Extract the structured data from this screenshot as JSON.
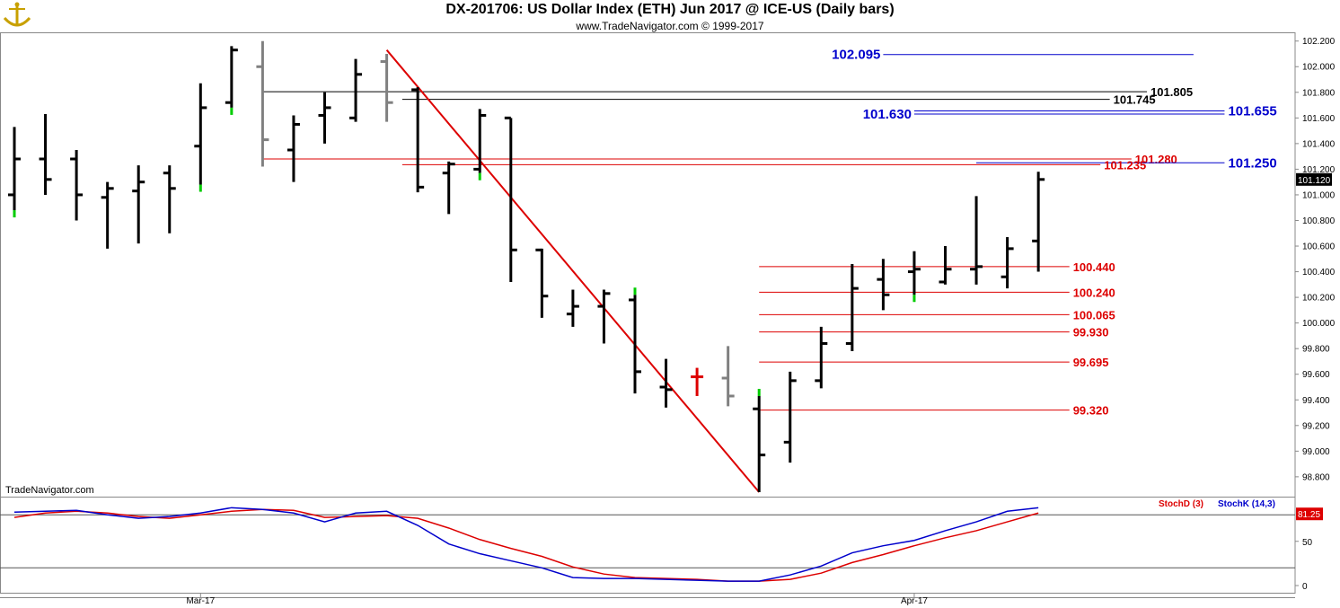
{
  "header": {
    "title": "DX-201706:  US Dollar Index (ETH) Jun 2017 @ ICE-US  (Daily bars)",
    "subtitle": "www.TradeNavigator.com © 1999-2017",
    "watermark": "TradeNavigator.com"
  },
  "colors": {
    "up_first_bar": "#00cc00",
    "bar": "#000000",
    "gray_bar": "#808080",
    "trendline": "#dd0000",
    "level_red": "#dd0000",
    "level_black": "#000000",
    "level_blue": "#0000cc",
    "price_label_bg": "#000000",
    "stoch_label_bg": "#dd0000"
  },
  "chart_data": {
    "type": "ohlc",
    "price_axis": {
      "range": [
        98.68,
        102.24
      ],
      "ticks": [
        "102.200",
        "102.000",
        "101.800",
        "101.600",
        "101.400",
        "101.200",
        "101.000",
        "100.800",
        "100.600",
        "100.400",
        "100.200",
        "100.000",
        "99.800",
        "99.600",
        "99.400",
        "99.200",
        "99.000",
        "98.800"
      ]
    },
    "x_labels": [
      {
        "bar": 6,
        "text": "Mar-17"
      },
      {
        "bar": 29,
        "text": "Apr-17"
      }
    ],
    "last_price_label": "101.120",
    "bars": [
      {
        "o": 101.0,
        "h": 101.53,
        "l": 100.88,
        "c": 101.28,
        "color": "black",
        "tick": "green"
      },
      {
        "o": 101.28,
        "h": 101.63,
        "l": 101.0,
        "c": 101.12,
        "color": "black"
      },
      {
        "o": 101.28,
        "h": 101.35,
        "l": 100.8,
        "c": 101.0,
        "color": "black"
      },
      {
        "o": 100.98,
        "h": 101.1,
        "l": 100.58,
        "c": 101.05,
        "color": "black"
      },
      {
        "o": 101.03,
        "h": 101.23,
        "l": 100.62,
        "c": 101.1,
        "color": "black"
      },
      {
        "o": 101.17,
        "h": 101.23,
        "l": 100.7,
        "c": 101.05,
        "color": "black"
      },
      {
        "o": 101.38,
        "h": 101.87,
        "l": 101.08,
        "c": 101.68,
        "color": "black",
        "tick": "green"
      },
      {
        "o": 101.72,
        "h": 102.16,
        "l": 101.68,
        "c": 102.13,
        "color": "black",
        "tick": "green"
      },
      {
        "o": 102.0,
        "h": 102.2,
        "l": 101.22,
        "c": 101.43,
        "color": "gray"
      },
      {
        "o": 101.35,
        "h": 101.62,
        "l": 101.1,
        "c": 101.55,
        "color": "black"
      },
      {
        "o": 101.62,
        "h": 101.8,
        "l": 101.4,
        "c": 101.68,
        "color": "black"
      },
      {
        "o": 101.6,
        "h": 102.06,
        "l": 101.57,
        "c": 101.94,
        "color": "black"
      },
      {
        "o": 102.04,
        "h": 102.1,
        "l": 101.57,
        "c": 101.72,
        "color": "gray"
      },
      {
        "o": 101.82,
        "h": 101.84,
        "l": 101.02,
        "c": 101.06,
        "color": "black"
      },
      {
        "o": 101.17,
        "h": 101.26,
        "l": 100.85,
        "c": 101.24,
        "color": "black"
      },
      {
        "o": 101.2,
        "h": 101.67,
        "l": 101.17,
        "c": 101.62,
        "color": "black",
        "tick": "green"
      },
      {
        "o": 101.6,
        "h": 101.6,
        "l": 100.32,
        "c": 100.57,
        "color": "black"
      },
      {
        "o": 100.57,
        "h": 100.58,
        "l": 100.04,
        "c": 100.21,
        "color": "black"
      },
      {
        "o": 100.07,
        "h": 100.26,
        "l": 99.97,
        "c": 100.13,
        "color": "black"
      },
      {
        "o": 100.13,
        "h": 100.26,
        "l": 99.84,
        "c": 100.23,
        "color": "black"
      },
      {
        "o": 100.18,
        "h": 100.22,
        "l": 99.45,
        "c": 99.62,
        "color": "black",
        "tick": "green"
      },
      {
        "o": 99.5,
        "h": 99.72,
        "l": 99.34,
        "c": 99.48,
        "color": "black"
      },
      {
        "o": 99.58,
        "h": 99.65,
        "l": 99.43,
        "c": 99.58,
        "color": "red"
      },
      {
        "o": 99.57,
        "h": 99.82,
        "l": 99.35,
        "c": 99.43,
        "color": "gray"
      },
      {
        "o": 99.33,
        "h": 99.43,
        "l": 98.68,
        "c": 98.97,
        "color": "black",
        "tick": "green"
      },
      {
        "o": 99.07,
        "h": 99.62,
        "l": 98.91,
        "c": 99.55,
        "color": "black"
      },
      {
        "o": 99.55,
        "h": 99.97,
        "l": 99.49,
        "c": 99.84,
        "color": "black"
      },
      {
        "o": 99.84,
        "h": 100.46,
        "l": 99.78,
        "c": 100.27,
        "color": "black"
      },
      {
        "o": 100.34,
        "h": 100.5,
        "l": 100.1,
        "c": 100.22,
        "color": "black"
      },
      {
        "o": 100.4,
        "h": 100.56,
        "l": 100.22,
        "c": 100.42,
        "color": "black",
        "tick": "green"
      },
      {
        "o": 100.32,
        "h": 100.6,
        "l": 100.3,
        "c": 100.42,
        "color": "black"
      },
      {
        "o": 100.42,
        "h": 100.99,
        "l": 100.3,
        "c": 100.44,
        "color": "black"
      },
      {
        "o": 100.36,
        "h": 100.67,
        "l": 100.27,
        "c": 100.58,
        "color": "black"
      },
      {
        "o": 100.64,
        "h": 101.18,
        "l": 100.4,
        "c": 101.12,
        "color": "black"
      }
    ],
    "trendline": {
      "from_bar": 12,
      "from_price": 102.13,
      "to_bar": 24,
      "to_price": 98.68
    },
    "levels": [
      {
        "price": 102.095,
        "label": "102.095",
        "color": "blue",
        "from_bar": 28,
        "to_bar": 38,
        "label_side": "left"
      },
      {
        "price": 101.805,
        "label": "101.805",
        "color": "black",
        "from_bar": 8,
        "to_bar": 36.5,
        "label_side": "right"
      },
      {
        "price": 101.745,
        "label": "101.745",
        "color": "black",
        "from_bar": 12.5,
        "to_bar": 35.3,
        "label_side": "right"
      },
      {
        "price": 101.655,
        "label": "101.655",
        "color": "blue",
        "from_bar": 29,
        "to_bar": 39,
        "label_side": "right"
      },
      {
        "price": 101.63,
        "label": "101.630",
        "color": "blue",
        "from_bar": 29,
        "to_bar": 39,
        "label_side": "left"
      },
      {
        "price": 101.28,
        "label": "101.280",
        "color": "red",
        "from_bar": 8,
        "to_bar": 36,
        "label_side": "right"
      },
      {
        "price": 101.25,
        "label": "101.250",
        "color": "blue",
        "from_bar": 31,
        "to_bar": 39,
        "label_side": "right"
      },
      {
        "price": 101.235,
        "label": "101.235",
        "color": "red",
        "from_bar": 12.5,
        "to_bar": 35,
        "label_side": "right"
      },
      {
        "price": 100.44,
        "label": "100.440",
        "color": "red",
        "from_bar": 24,
        "to_bar": 34,
        "label_side": "right"
      },
      {
        "price": 100.24,
        "label": "100.240",
        "color": "red",
        "from_bar": 24,
        "to_bar": 34,
        "label_side": "right"
      },
      {
        "price": 100.065,
        "label": "100.065",
        "color": "red",
        "from_bar": 24,
        "to_bar": 34,
        "label_side": "right"
      },
      {
        "price": 99.93,
        "label": "99.930",
        "color": "red",
        "from_bar": 24,
        "to_bar": 34,
        "label_side": "right"
      },
      {
        "price": 99.695,
        "label": "99.695",
        "color": "red",
        "from_bar": 24,
        "to_bar": 34,
        "label_side": "right"
      },
      {
        "price": 99.32,
        "label": "99.320",
        "color": "red",
        "from_bar": 24,
        "to_bar": 34,
        "label_side": "right"
      }
    ],
    "stochastic": {
      "legend_d": "StochD (3)",
      "legend_k": "StochK (14,3)",
      "range": [
        0,
        100
      ],
      "ticks": [
        "50",
        "0"
      ],
      "ref_lines": [
        80,
        20
      ],
      "last_label": "81.25",
      "stoch_k": [
        83,
        84,
        85,
        80,
        76,
        78,
        82,
        88,
        86,
        82,
        72,
        82,
        84,
        68,
        47,
        36,
        28,
        20,
        9,
        8,
        8,
        7,
        6,
        5,
        5,
        12,
        22,
        37,
        45,
        51,
        62,
        72,
        84,
        88
      ],
      "stoch_d": [
        77,
        82,
        84,
        82,
        78,
        76,
        80,
        84,
        86,
        85,
        77,
        78,
        79,
        76,
        65,
        52,
        42,
        33,
        21,
        13,
        9,
        8,
        7,
        5,
        5,
        7,
        14,
        26,
        35,
        45,
        54,
        62,
        72,
        82
      ]
    }
  }
}
